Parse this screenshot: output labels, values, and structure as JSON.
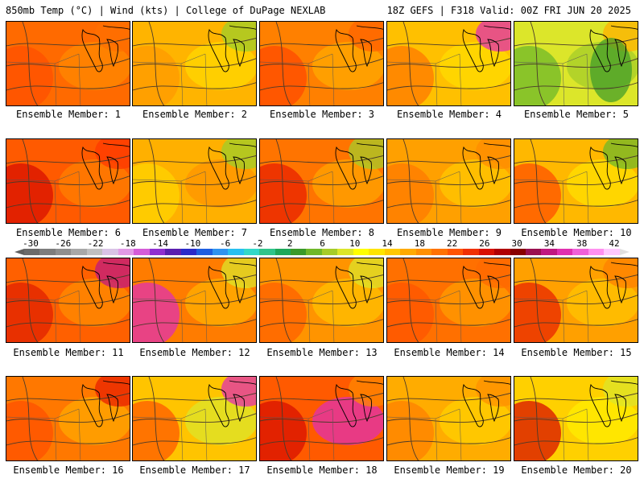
{
  "header": {
    "left": "850mb Temp (°C) | Wind (kts) | College of DuPage NEXLAB",
    "right": "18Z GEFS | F318 Valid: 00Z FRI JUN 20 2025"
  },
  "colorbar": {
    "ticks": [
      "-30",
      "-26",
      "-22",
      "-18",
      "-14",
      "-10",
      "-6",
      "-2",
      "2",
      "6",
      "10",
      "14",
      "18",
      "22",
      "26",
      "30",
      "34",
      "38",
      "42"
    ],
    "colors": [
      "#6b6b6b",
      "#7d7d7d",
      "#8f8f8f",
      "#a8a8a8",
      "#c0c0c0",
      "#d9c3e6",
      "#e29ae6",
      "#d45cd8",
      "#8f2fd0",
      "#5a1fb0",
      "#2a2ac8",
      "#1e5ee0",
      "#2f93f0",
      "#28c0f0",
      "#33d8c8",
      "#2fc48a",
      "#1ea85a",
      "#3a9a2a",
      "#6fb82a",
      "#a6cc2a",
      "#dce62a",
      "#ffff00",
      "#ffe400",
      "#ffc800",
      "#ffaa00",
      "#ff9000",
      "#ff7200",
      "#ff5400",
      "#f03000",
      "#d81000",
      "#b00000",
      "#880000",
      "#9a1050",
      "#c01880",
      "#e030b0",
      "#f060d8",
      "#ff90f0",
      "#ffc8ff"
    ]
  },
  "panels": [
    {
      "label": "Ensemble Member: 1",
      "base": "#ff6a00",
      "blobs": [
        "#ff5000",
        "#ff8a00",
        "#ff7000"
      ],
      "dark": false
    },
    {
      "label": "Ensemble Member: 2",
      "base": "#ffb400",
      "blobs": [
        "#ff9a00",
        "#ffd800",
        "#9ecf2a"
      ],
      "dark": false
    },
    {
      "label": "Ensemble Member: 3",
      "base": "#ff8000",
      "blobs": [
        "#ff4a00",
        "#ffaa00",
        "#ff6400"
      ],
      "dark": false
    },
    {
      "label": "Ensemble Member: 4",
      "base": "#ffc000",
      "blobs": [
        "#ff7800",
        "#ffdc00",
        "#e030b0"
      ],
      "dark": false
    },
    {
      "label": "Ensemble Member: 5",
      "base": "#dce62a",
      "blobs": [
        "#6fb82a",
        "#a6cc2a",
        "#ffb000"
      ],
      "dark": true
    },
    {
      "label": "Ensemble Member: 6",
      "base": "#ff5a00",
      "blobs": [
        "#d81000",
        "#ff8000",
        "#ff3a00"
      ],
      "dark": false
    },
    {
      "label": "Ensemble Member: 7",
      "base": "#ffb000",
      "blobs": [
        "#ffd400",
        "#ff9400",
        "#9ecf2a"
      ],
      "dark": false
    },
    {
      "label": "Ensemble Member: 8",
      "base": "#ff7400",
      "blobs": [
        "#e82000",
        "#ffa400",
        "#a6cc2a"
      ],
      "dark": false
    },
    {
      "label": "Ensemble Member: 9",
      "base": "#ffa000",
      "blobs": [
        "#ff7a00",
        "#ffc800",
        "#ff8c00"
      ],
      "dark": false
    },
    {
      "label": "Ensemble Member: 10",
      "base": "#ffb800",
      "blobs": [
        "#ff5000",
        "#ffe000",
        "#6fb82a"
      ],
      "dark": false
    },
    {
      "label": "Ensemble Member: 11",
      "base": "#ff6000",
      "blobs": [
        "#e02000",
        "#ff8c00",
        "#c01880"
      ],
      "dark": false
    },
    {
      "label": "Ensemble Member: 12",
      "base": "#ff7c00",
      "blobs": [
        "#e030b0",
        "#ffb000",
        "#dce62a"
      ],
      "dark": false
    },
    {
      "label": "Ensemble Member: 13",
      "base": "#ff9400",
      "blobs": [
        "#ff6000",
        "#ffc000",
        "#dce62a"
      ],
      "dark": false
    },
    {
      "label": "Ensemble Member: 14",
      "base": "#ff7000",
      "blobs": [
        "#ff5400",
        "#ff9c00",
        "#ff6a00"
      ],
      "dark": false
    },
    {
      "label": "Ensemble Member: 15",
      "base": "#ffa000",
      "blobs": [
        "#e82400",
        "#ffc400",
        "#ff8000"
      ],
      "dark": false
    },
    {
      "label": "Ensemble Member: 16",
      "base": "#ff7800",
      "blobs": [
        "#ff5000",
        "#ffa800",
        "#e82000"
      ],
      "dark": false
    },
    {
      "label": "Ensemble Member: 17",
      "base": "#ffc400",
      "blobs": [
        "#ff5a00",
        "#dce62a",
        "#e030b0"
      ],
      "dark": false
    },
    {
      "label": "Ensemble Member: 18",
      "base": "#ff5a00",
      "blobs": [
        "#d81000",
        "#e030b0",
        "#ff8800"
      ],
      "dark": false
    },
    {
      "label": "Ensemble Member: 19",
      "base": "#ffac00",
      "blobs": [
        "#ff8000",
        "#ffd000",
        "#ff9000"
      ],
      "dark": false
    },
    {
      "label": "Ensemble Member: 20",
      "base": "#ffd000",
      "blobs": [
        "#d81000",
        "#ffee00",
        "#dce62a"
      ],
      "dark": false
    }
  ]
}
